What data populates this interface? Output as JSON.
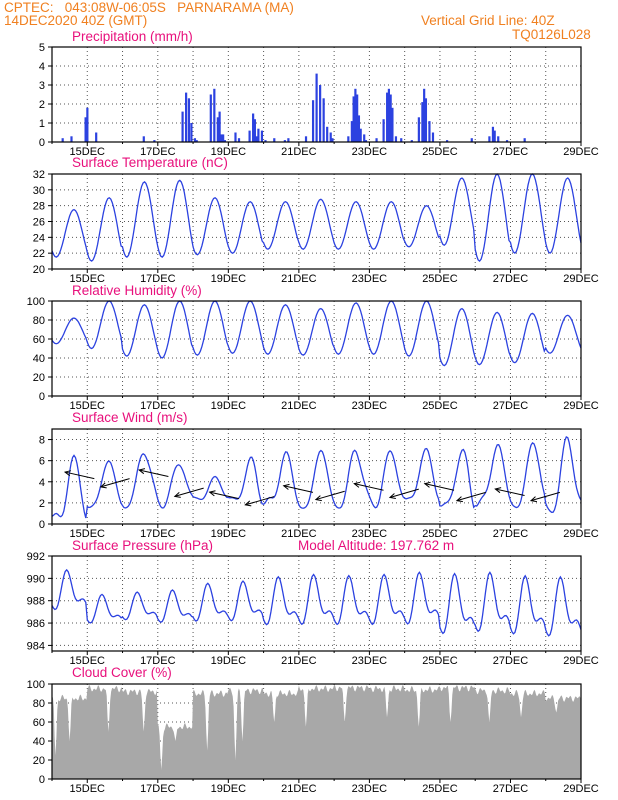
{
  "header": {
    "source": "CPTEC:",
    "coords": "043:08W-06:05S",
    "location": "PARNARAMA (MA)",
    "run": "14DEC2020 40Z (GMT)",
    "grid_note": "Vertical Grid Line: 40Z",
    "code": "TQ0126L028"
  },
  "colors": {
    "header": "#f08020",
    "title": "#e8107c",
    "line": "#2c42e0",
    "bar": "#2c42e0",
    "cloud": "#a8a8a8",
    "arrow": "#000000"
  },
  "chart_data": [
    {
      "type": "bar",
      "title": "Precipitation (mm/h)",
      "ylim": [
        0,
        5
      ],
      "yticks": [
        0,
        1,
        2,
        3,
        4,
        5
      ],
      "xticks": [
        "15DEC",
        "17DEC",
        "19DEC",
        "21DEC",
        "23DEC",
        "25DEC",
        "27DEC",
        "29DEC"
      ],
      "x_days": [
        0.3,
        0.55,
        0.95,
        1.0,
        1.25,
        2.6,
        2.9,
        3.7,
        3.8,
        3.88,
        3.95,
        4.05,
        4.1,
        4.5,
        4.6,
        4.7,
        4.75,
        4.8,
        4.85,
        4.9,
        5.2,
        5.3,
        5.6,
        5.7,
        5.75,
        5.8,
        5.85,
        5.95,
        6.05,
        6.3,
        6.6,
        6.7,
        7.2,
        7.4,
        7.5,
        7.6,
        7.7,
        7.8,
        7.9,
        7.95,
        8.4,
        8.5,
        8.55,
        8.6,
        8.65,
        8.7,
        8.75,
        8.85,
        8.9,
        9.2,
        9.4,
        9.5,
        9.55,
        9.6,
        9.65,
        9.75,
        9.9,
        10.2,
        10.4,
        10.5,
        10.55,
        10.6,
        10.7,
        10.8,
        11.2,
        11.9,
        12.4,
        12.5,
        12.55,
        12.65,
        12.9,
        13.4
      ],
      "values": [
        0.2,
        0.3,
        1.3,
        1.8,
        0.5,
        0.3,
        0.1,
        1.6,
        2.6,
        2.3,
        1.0,
        0.2,
        0.1,
        2.5,
        2.8,
        1.3,
        1.6,
        0.4,
        0.4,
        0.1,
        0.5,
        0.2,
        0.6,
        1.5,
        1.2,
        0.3,
        0.7,
        0.6,
        0.1,
        0.2,
        0.1,
        0.2,
        0.3,
        2.2,
        3.6,
        3.0,
        2.3,
        0.8,
        0.5,
        0.2,
        0.3,
        1.1,
        2.4,
        2.8,
        2.5,
        1.4,
        0.7,
        0.4,
        0.1,
        0.2,
        1.2,
        2.6,
        2.8,
        2.5,
        1.8,
        0.3,
        0.2,
        0.1,
        1.3,
        2.1,
        2.8,
        2.3,
        1.1,
        0.5,
        0.1,
        0.2,
        0.3,
        0.8,
        0.6,
        0.3,
        0.1,
        0.2
      ]
    },
    {
      "type": "line",
      "title": "Surface Temperature (nC)",
      "ylim": [
        20,
        32
      ],
      "yticks": [
        20,
        22,
        24,
        26,
        28,
        30,
        32
      ],
      "xticks": [
        "15DEC",
        "17DEC",
        "19DEC",
        "21DEC",
        "23DEC",
        "25DEC",
        "27DEC",
        "29DEC"
      ],
      "daily_min": [
        21.5,
        21.0,
        21.5,
        21.5,
        21.8,
        22.0,
        22.5,
        22.5,
        22.5,
        22.5,
        22.8,
        23.0,
        21.0,
        22.0,
        22.0
      ],
      "daily_max": [
        27.5,
        29.0,
        31.0,
        31.2,
        29.0,
        28.5,
        28.5,
        28.8,
        28.5,
        28.5,
        28.0,
        31.5,
        32.0,
        32.0,
        31.5
      ]
    },
    {
      "type": "line",
      "title": "Relative Humidity (%)",
      "ylim": [
        0,
        100
      ],
      "yticks": [
        0,
        20,
        40,
        60,
        80,
        100
      ],
      "xticks": [
        "15DEC",
        "17DEC",
        "19DEC",
        "21DEC",
        "23DEC",
        "25DEC",
        "27DEC",
        "29DEC"
      ],
      "daily_min": [
        55,
        50,
        42,
        40,
        43,
        45,
        44,
        43,
        44,
        44,
        42,
        32,
        33,
        35,
        45
      ],
      "daily_max": [
        82,
        100,
        96,
        100,
        100,
        100,
        96,
        92,
        98,
        100,
        100,
        92,
        88,
        87,
        85
      ]
    },
    {
      "type": "line",
      "title": "Surface Wind (m/s)",
      "ylim": [
        0,
        9
      ],
      "yticks": [
        0,
        2,
        4,
        6,
        8
      ],
      "xticks": [
        "15DEC",
        "17DEC",
        "19DEC",
        "21DEC",
        "23DEC",
        "25DEC",
        "27DEC",
        "29DEC"
      ],
      "daily_min": [
        0.5,
        2.0,
        2.0,
        2.0,
        2.0,
        2.0,
        2.0,
        2.0,
        2.0,
        2.0,
        2.0,
        1.5,
        2.0,
        2.0,
        1.5
      ],
      "daily_max": [
        6.0,
        5.5,
        7.0,
        6.0,
        5.0,
        6.0,
        6.5,
        6.5,
        7.0,
        7.0,
        7.5,
        7.0,
        7.5,
        7.5,
        8.0
      ],
      "arrows": [
        {
          "x": 1.2,
          "y": 4.3
        },
        {
          "x": 2.2,
          "y": 4.3
        },
        {
          "x": 3.3,
          "y": 4.5
        },
        {
          "x": 4.3,
          "y": 3.4
        },
        {
          "x": 5.3,
          "y": 2.4
        },
        {
          "x": 6.3,
          "y": 2.6
        },
        {
          "x": 7.4,
          "y": 3.0
        },
        {
          "x": 8.3,
          "y": 3.1
        },
        {
          "x": 9.4,
          "y": 3.2
        },
        {
          "x": 10.4,
          "y": 3.3
        },
        {
          "x": 11.4,
          "y": 3.2
        },
        {
          "x": 12.3,
          "y": 3.0
        },
        {
          "x": 13.4,
          "y": 2.7
        },
        {
          "x": 14.4,
          "y": 3.0
        }
      ]
    },
    {
      "type": "line",
      "title": "Surface Pressure (hPa)",
      "altitude": "Model Altitude: 197.762 m",
      "ylim": [
        983.5,
        992
      ],
      "yticks": [
        984,
        986,
        988,
        990,
        992
      ],
      "xticks": [
        "15DEC",
        "17DEC",
        "19DEC",
        "21DEC",
        "23DEC",
        "25DEC",
        "27DEC",
        "29DEC"
      ],
      "daily_min": [
        986.5,
        985.5,
        985.8,
        985.5,
        985.5,
        985.5,
        985.0,
        985.0,
        985.0,
        985.0,
        985.0,
        984.0,
        984.2,
        984.0,
        983.8
      ],
      "daily_max": [
        990.8,
        988.6,
        988.8,
        989.0,
        989.6,
        989.8,
        990.2,
        990.4,
        990.3,
        990.4,
        990.6,
        990.5,
        990.6,
        990.3,
        990.2
      ]
    },
    {
      "type": "area",
      "title": "Cloud Cover (%)",
      "ylim": [
        0,
        100
      ],
      "yticks": [
        0,
        20,
        40,
        60,
        80,
        100
      ],
      "xticks": [
        "15DEC",
        "17DEC",
        "19DEC",
        "21DEC",
        "23DEC",
        "25DEC",
        "27DEC",
        "29DEC"
      ],
      "daily_values": [
        85,
        95,
        92,
        55,
        90,
        93,
        90,
        95,
        96,
        95,
        94,
        96,
        93,
        90,
        85
      ],
      "dips": [
        {
          "x": 0.1,
          "y": 25
        },
        {
          "x": 0.5,
          "y": 40
        },
        {
          "x": 1.6,
          "y": 50
        },
        {
          "x": 2.6,
          "y": 50
        },
        {
          "x": 3.1,
          "y": 10
        },
        {
          "x": 3.5,
          "y": 40
        },
        {
          "x": 4.4,
          "y": 30
        },
        {
          "x": 5.2,
          "y": 20
        },
        {
          "x": 5.4,
          "y": 40
        },
        {
          "x": 6.3,
          "y": 60
        },
        {
          "x": 7.2,
          "y": 55
        },
        {
          "x": 8.3,
          "y": 60
        },
        {
          "x": 9.5,
          "y": 65
        },
        {
          "x": 10.4,
          "y": 55
        },
        {
          "x": 11.3,
          "y": 60
        },
        {
          "x": 12.4,
          "y": 60
        },
        {
          "x": 13.3,
          "y": 65
        },
        {
          "x": 14.3,
          "y": 70
        }
      ]
    }
  ]
}
